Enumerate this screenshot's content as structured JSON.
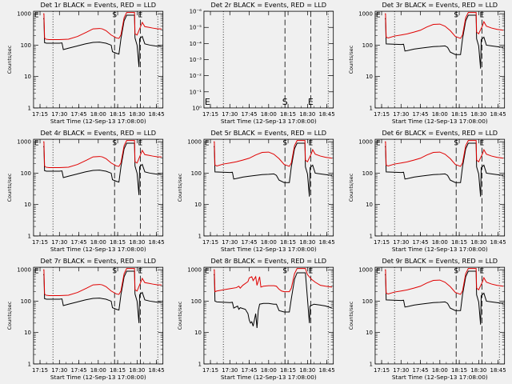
{
  "figure": {
    "background": "#f0f0f0",
    "events_color": "#000000",
    "lld_color": "#e00000"
  },
  "chart_data": [
    {
      "type": "line",
      "title": "Det 1r BLACK = Events, RED = LLD",
      "xlabel": "Start Time (12-Sep-13 17:08:00)",
      "ylabel": "Counts/sec",
      "yscale": "log",
      "ylim": [
        1,
        1200
      ],
      "xticks": [
        "17:15",
        "17:30",
        "17:45",
        "18:00",
        "18:15",
        "18:30",
        "18:45"
      ],
      "yticks": [
        "1",
        "10",
        "100",
        "1000"
      ],
      "profile": "A",
      "has_data": true,
      "markers": [
        "E",
        "S",
        "E"
      ]
    },
    {
      "type": "line",
      "title": "Det 2r BLACK = Events, RED = LLD",
      "xlabel": "Start Time (12-Sep-13 17:08:00)",
      "ylabel": "",
      "yscale": "log",
      "ylim": [
        1,
        1e-06
      ],
      "xticks": [
        "17:15",
        "17:30",
        "17:45",
        "18:00",
        "18:15",
        "18:30",
        "18:45"
      ],
      "yticks": [
        "10⁰",
        "10⁻¹",
        "10⁻²",
        "10⁻³",
        "10⁻⁴",
        "10⁻⁵",
        "10⁻⁶"
      ],
      "profile": "none",
      "has_data": false,
      "markers": [
        "E",
        "S",
        "E"
      ]
    },
    {
      "type": "line",
      "title": "Det 3r BLACK = Events, RED = LLD",
      "xlabel": "Start Time (12-Sep-13 17:08:00)",
      "ylabel": "Counts/sec",
      "yscale": "log",
      "ylim": [
        1,
        1200
      ],
      "xticks": [
        "17:15",
        "17:30",
        "17:45",
        "18:00",
        "18:15",
        "18:30",
        "18:45"
      ],
      "yticks": [
        "1",
        "10",
        "100",
        "1000"
      ],
      "profile": "C",
      "has_data": true,
      "markers": [
        "E",
        "S",
        "E"
      ]
    },
    {
      "type": "line",
      "title": "Det 4r BLACK = Events, RED = LLD",
      "xlabel": "Start Time (12-Sep-13 17:08:00)",
      "ylabel": "Counts/sec",
      "yscale": "log",
      "ylim": [
        1,
        1200
      ],
      "xticks": [
        "17:15",
        "17:30",
        "17:45",
        "18:00",
        "18:15",
        "18:30",
        "18:45"
      ],
      "yticks": [
        "1",
        "10",
        "100",
        "1000"
      ],
      "profile": "A",
      "has_data": true,
      "markers": [
        "E",
        "S",
        "E"
      ]
    },
    {
      "type": "line",
      "title": "Det 5r BLACK = Events, RED = LLD",
      "xlabel": "Start Time (12-Sep-13 17:08:00)",
      "ylabel": "Counts/sec",
      "yscale": "log",
      "ylim": [
        1,
        1200
      ],
      "xticks": [
        "17:15",
        "17:30",
        "17:45",
        "18:00",
        "18:15",
        "18:30",
        "18:45"
      ],
      "yticks": [
        "1",
        "10",
        "100",
        "1000"
      ],
      "profile": "C",
      "has_data": true,
      "markers": [
        "E",
        "S",
        "E"
      ]
    },
    {
      "type": "line",
      "title": "Det 6r BLACK = Events, RED = LLD",
      "xlabel": "Start Time (12-Sep-13 17:08:00)",
      "ylabel": "Counts/sec",
      "yscale": "log",
      "ylim": [
        1,
        1200
      ],
      "xticks": [
        "17:15",
        "17:30",
        "17:45",
        "18:00",
        "18:15",
        "18:30",
        "18:45"
      ],
      "yticks": [
        "1",
        "10",
        "100",
        "1000"
      ],
      "profile": "C",
      "has_data": true,
      "markers": [
        "E",
        "S",
        "E"
      ]
    },
    {
      "type": "line",
      "title": "Det 7r BLACK = Events, RED = LLD",
      "xlabel": "Start Time (12-Sep-13 17:08:00)",
      "ylabel": "Counts/sec",
      "yscale": "log",
      "ylim": [
        1,
        1200
      ],
      "xticks": [
        "17:15",
        "17:30",
        "17:45",
        "18:00",
        "18:15",
        "18:30",
        "18:45"
      ],
      "yticks": [
        "1",
        "10",
        "100",
        "1000"
      ],
      "profile": "A",
      "has_data": true,
      "markers": [
        "E",
        "S",
        "E"
      ]
    },
    {
      "type": "line",
      "title": "Det 8r BLACK = Events, RED = LLD",
      "xlabel": "Start Time (12-Sep-13 17:08:00)",
      "ylabel": "Counts/sec",
      "yscale": "log",
      "ylim": [
        1,
        1200
      ],
      "xticks": [
        "17:15",
        "17:30",
        "17:45",
        "18:00",
        "18:15",
        "18:30",
        "18:45"
      ],
      "yticks": [
        "1",
        "10",
        "100",
        "1000"
      ],
      "profile": "B",
      "has_data": true,
      "markers": [
        "E",
        "S",
        "E"
      ]
    },
    {
      "type": "line",
      "title": "Det 9r BLACK = Events, RED = LLD",
      "xlabel": "Start Time (12-Sep-13 17:08:00)",
      "ylabel": "Counts/sec",
      "yscale": "log",
      "ylim": [
        1,
        1200
      ],
      "xticks": [
        "17:15",
        "17:30",
        "17:45",
        "18:00",
        "18:15",
        "18:30",
        "18:45"
      ],
      "yticks": [
        "1",
        "10",
        "100",
        "1000"
      ],
      "profile": "C",
      "has_data": true,
      "markers": [
        "E",
        "S",
        "E"
      ]
    }
  ]
}
